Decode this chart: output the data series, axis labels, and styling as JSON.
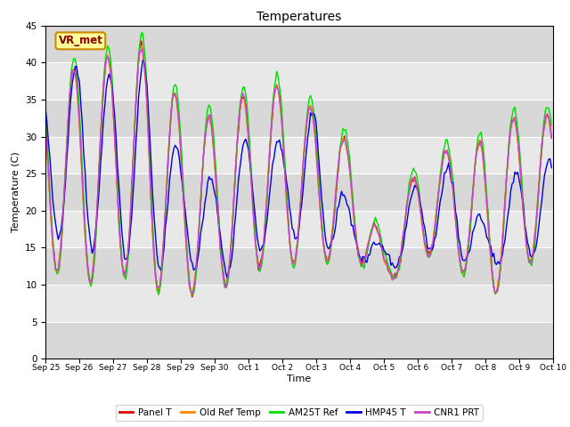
{
  "title": "Temperatures",
  "ylabel": "Temperature (C)",
  "xlabel": "Time",
  "ylim": [
    0,
    45
  ],
  "yticks": [
    0,
    5,
    10,
    15,
    20,
    25,
    30,
    35,
    40,
    45
  ],
  "colors": {
    "Panel T": "#dd0000",
    "Old Ref Temp": "#ff8800",
    "AM25T Ref": "#00dd00",
    "HMP45 T": "#0000dd",
    "CNR1 PRT": "#cc44cc"
  },
  "annotation_text": "VR_met",
  "annotation_facecolor": "#ffff99",
  "annotation_edgecolor": "#cc8800",
  "annotation_textcolor": "#880000",
  "plot_bg_color": "#e0e0e0",
  "figure_facecolor": "#ffffff",
  "xtick_labels": [
    "Sep 25",
    "Sep 26",
    "Sep 27",
    "Sep 28",
    "Sep 29",
    "Sep 30",
    "Oct 1",
    "Oct 2",
    "Oct 3",
    "Oct 4",
    "Oct 5",
    "Oct 6",
    "Oct 7",
    "Oct 8",
    "Oct 9",
    "Oct 10"
  ],
  "line_width": 1.0,
  "n_days": 15,
  "daily_peaks": [
    38.0,
    39.5,
    41.0,
    42.5,
    34.5,
    32.5,
    36.0,
    37.0,
    33.5,
    29.0,
    15.0,
    26.0,
    28.5,
    29.5,
    33.0,
    33.0
  ],
  "daily_mins": [
    13.0,
    9.5,
    12.0,
    9.5,
    8.5,
    9.0,
    12.0,
    13.0,
    12.5,
    14.5,
    9.5,
    14.0,
    14.0,
    7.0,
    13.0,
    13.0
  ],
  "hmp45_peaks": [
    36.0,
    40.0,
    38.0,
    40.0,
    27.0,
    24.0,
    30.5,
    29.5,
    34.0,
    20.0,
    15.0,
    24.0,
    26.0,
    18.0,
    26.0,
    27.0
  ],
  "hmp45_mins": [
    17.0,
    15.5,
    14.0,
    12.0,
    13.0,
    10.5,
    13.0,
    17.0,
    15.0,
    14.5,
    11.0,
    15.0,
    14.0,
    11.5,
    14.0,
    13.0
  ]
}
